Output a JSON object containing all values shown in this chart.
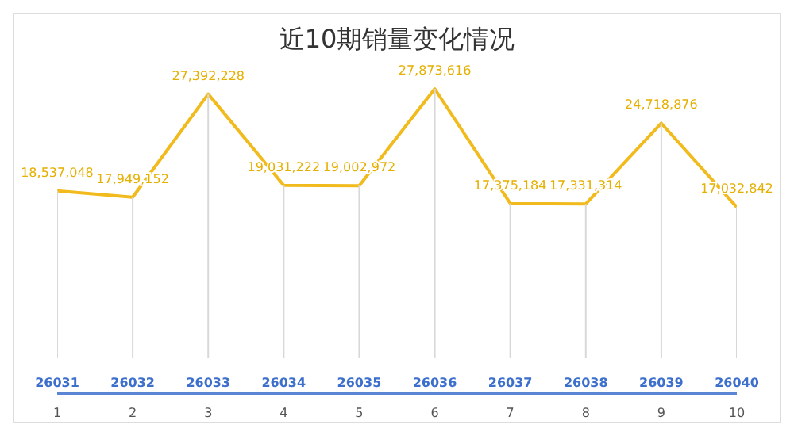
{
  "chart_data": {
    "type": "line",
    "title": "近10期销量变化情况",
    "x": [
      1,
      2,
      3,
      4,
      5,
      6,
      7,
      8,
      9,
      10
    ],
    "xlim": [
      1,
      10
    ],
    "xticks": [
      1,
      2,
      3,
      4,
      5,
      6,
      7,
      8,
      9,
      10
    ],
    "series": [
      {
        "color": "#f2bb1d",
        "values": [
          18537048,
          17949152,
          27392228,
          19031222,
          19002972,
          27873616,
          17375184,
          17331314,
          24718876,
          17032842
        ],
        "value_labels": [
          "18,537,048",
          "17,949,152",
          "27,392,228",
          "19,031,222",
          "19,002,972",
          "27,873,616",
          "17,375,184",
          "17,331,314",
          "24,718,876",
          "17,032,842"
        ]
      }
    ],
    "marker": "none",
    "grid": "x",
    "legend": false,
    "annotations": [
      "26031",
      "26032",
      "26033",
      "26034",
      "26035",
      "26036",
      "26037",
      "26038",
      "26039",
      "26040"
    ]
  }
}
